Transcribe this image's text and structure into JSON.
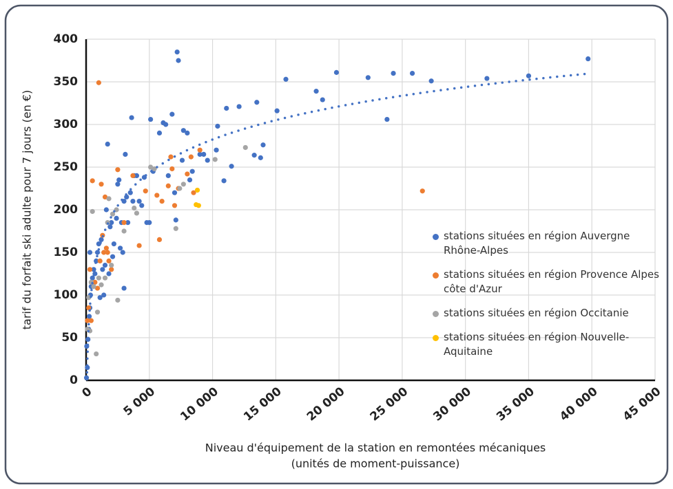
{
  "chart_data": {
    "type": "scatter",
    "ylabel": "tarif du forfait ski adulte pour 7 jours (en €)",
    "xlabel": [
      "Niveau d'équipement de la station en remontées mécaniques",
      "(unités de moment-puissance)"
    ],
    "xlim": [
      0,
      45000
    ],
    "ylim": [
      0,
      400
    ],
    "xticks": [
      0,
      {
        "value": 5000,
        "label": "5 000"
      },
      {
        "value": 10000,
        "label": "10 000"
      },
      {
        "value": 15000,
        "label": "15 000"
      },
      {
        "value": 20000,
        "label": "20 000"
      },
      {
        "value": 25000,
        "label": "25 000"
      },
      {
        "value": 30000,
        "label": "30 000"
      },
      {
        "value": 35000,
        "label": "35 000"
      },
      {
        "value": 40000,
        "label": "40 000"
      },
      {
        "value": 45000,
        "label": "45 000"
      }
    ],
    "yticks": [
      0,
      50,
      100,
      150,
      200,
      250,
      300,
      350,
      400
    ],
    "grid": true,
    "trendline": {
      "series": 0,
      "type": "logarithmic",
      "style": "dotted"
    },
    "series": [
      {
        "name": "stations situées en région Auvergne Rhône-Alpes",
        "color": "#4472c4",
        "x": [
          30,
          100,
          50,
          150,
          200,
          250,
          300,
          350,
          400,
          500,
          300,
          600,
          700,
          800,
          900,
          1000,
          1100,
          1200,
          1300,
          1400,
          1500,
          1600,
          1700,
          1800,
          1900,
          2000,
          2100,
          2200,
          2400,
          2500,
          2600,
          2700,
          2800,
          2900,
          3000,
          3000,
          3100,
          3200,
          3300,
          3500,
          3600,
          3700,
          3800,
          4000,
          4200,
          4400,
          4600,
          4800,
          5000,
          5100,
          5300,
          5800,
          6100,
          6300,
          6500,
          6800,
          7000,
          7100,
          7200,
          7300,
          7600,
          7700,
          8000,
          8200,
          8400,
          9000,
          9300,
          9600,
          10300,
          10400,
          10900,
          11100,
          11500,
          12100,
          13300,
          13500,
          13800,
          14000,
          15100,
          15800,
          18200,
          18700,
          19800,
          22300,
          23800,
          24300,
          25800,
          27300,
          31700,
          35000,
          39700
        ],
        "values": [
          3,
          15,
          40,
          48,
          60,
          75,
          85,
          100,
          110,
          120,
          150,
          130,
          125,
          140,
          150,
          160,
          97,
          165,
          130,
          100,
          135,
          200,
          277,
          125,
          180,
          185,
          145,
          160,
          190,
          230,
          235,
          155,
          185,
          150,
          108,
          210,
          265,
          215,
          185,
          220,
          308,
          210,
          240,
          240,
          210,
          205,
          238,
          185,
          185,
          306,
          245,
          290,
          302,
          300,
          240,
          312,
          220,
          188,
          385,
          375,
          258,
          293,
          290,
          235,
          245,
          265,
          265,
          258,
          270,
          298,
          234,
          319,
          251,
          321,
          264,
          326,
          261,
          276,
          316,
          353,
          339,
          329,
          361,
          355,
          306,
          360,
          360,
          351,
          354,
          357,
          377
        ]
      },
      {
        "name": "stations situées en région Provence Alpes côte d'Azur",
        "color": "#ed7d31",
        "x": [
          100,
          200,
          300,
          400,
          500,
          700,
          900,
          1000,
          1100,
          1200,
          1300,
          1400,
          1500,
          1600,
          1700,
          1800,
          2000,
          2500,
          3000,
          3700,
          4200,
          4700,
          5600,
          5800,
          6000,
          6500,
          6700,
          6800,
          7000,
          7300,
          8000,
          8300,
          8500,
          9000,
          26600
        ],
        "values": [
          70,
          85,
          130,
          70,
          234,
          115,
          108,
          349,
          140,
          230,
          170,
          150,
          215,
          155,
          150,
          140,
          130,
          247,
          185,
          240,
          158,
          222,
          217,
          165,
          210,
          228,
          262,
          248,
          205,
          225,
          242,
          262,
          220,
          270,
          222
        ]
      },
      {
        "name": "stations situées en région Occitanie",
        "color": "#a5a5a5",
        "x": [
          100,
          200,
          300,
          400,
          500,
          600,
          800,
          900,
          1000,
          1200,
          1500,
          1700,
          1800,
          2000,
          2100,
          2400,
          2500,
          3000,
          3800,
          4000,
          5100,
          5400,
          7100,
          7400,
          7700,
          10200,
          12600
        ],
        "values": [
          60,
          97,
          58,
          115,
          198,
          110,
          31,
          80,
          120,
          112,
          120,
          185,
          213,
          135,
          195,
          200,
          94,
          175,
          202,
          196,
          250,
          248,
          178,
          225,
          230,
          259,
          273
        ]
      },
      {
        "name": "stations situées en région Nouvelle-Aquitaine",
        "color": "#ffc000",
        "x": [
          8800,
          8700,
          8900
        ],
        "values": [
          223,
          206,
          205
        ]
      }
    ]
  }
}
